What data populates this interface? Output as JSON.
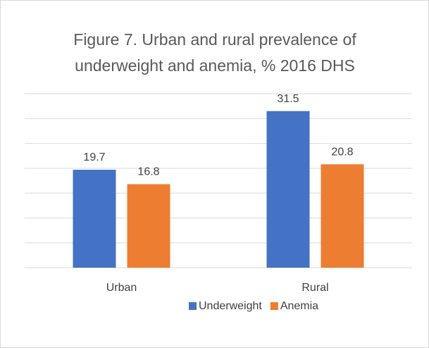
{
  "chart_data": {
    "type": "bar",
    "title": "Figure 7. Urban and rural prevalence of underweight and anemia, % 2016 DHS",
    "categories": [
      "Urban",
      "Rural"
    ],
    "series": [
      {
        "name": "Underweight",
        "color": "#4472c4",
        "values": [
          19.7,
          31.5
        ]
      },
      {
        "name": "Anemia",
        "color": "#ed7d31",
        "values": [
          16.8,
          20.8
        ]
      }
    ],
    "ylim": [
      0,
      35
    ],
    "yticks": [
      0,
      5,
      10,
      15,
      20,
      25,
      30,
      35
    ],
    "grid": true,
    "legend": "bottom"
  }
}
